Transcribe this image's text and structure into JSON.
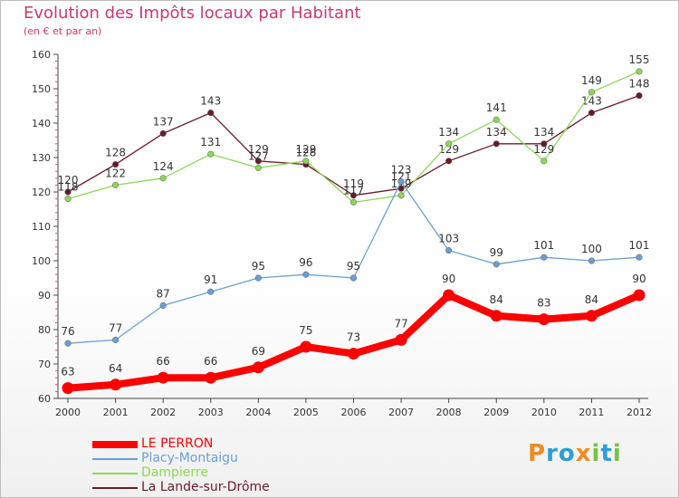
{
  "header": {
    "title": "Evolution des Impôts locaux par Habitant",
    "subtitle": "(en € et par an)"
  },
  "logo": {
    "text": "Proxiti",
    "letters": [
      "P",
      "r",
      "o",
      "x",
      "i",
      "t",
      "i"
    ]
  },
  "chart_data": {
    "type": "line",
    "title": "Evolution des Impôts locaux par Habitant",
    "subtitle": "(en € et par an)",
    "xlabel": "",
    "ylabel": "",
    "ylim": [
      60,
      160
    ],
    "yticks": [
      60,
      70,
      80,
      90,
      100,
      110,
      120,
      130,
      140,
      150,
      160
    ],
    "categories": [
      "2000",
      "2001",
      "2002",
      "2003",
      "2004",
      "2005",
      "2006",
      "2007",
      "2008",
      "2009",
      "2010",
      "2011",
      "2012"
    ],
    "grid": false,
    "legend_position": "bottom-left",
    "series": [
      {
        "name": "LE PERRON",
        "color": "#ff0000",
        "values": [
          63,
          64,
          66,
          66,
          69,
          75,
          73,
          77,
          90,
          84,
          83,
          84,
          90
        ]
      },
      {
        "name": "Placy-Montaigu",
        "color": "#6a9fd4",
        "values": [
          76,
          77,
          87,
          91,
          95,
          96,
          95,
          123,
          103,
          99,
          101,
          100,
          101
        ]
      },
      {
        "name": "Dampierre",
        "color": "#8cd65a",
        "values": [
          118,
          122,
          124,
          131,
          127,
          129,
          117,
          119,
          134,
          141,
          129,
          149,
          155
        ]
      },
      {
        "name": "La Lande-sur-Drôme",
        "color": "#6b1a2a",
        "values": [
          120,
          128,
          137,
          143,
          129,
          128,
          119,
          121,
          129,
          134,
          134,
          143,
          148
        ]
      }
    ]
  }
}
